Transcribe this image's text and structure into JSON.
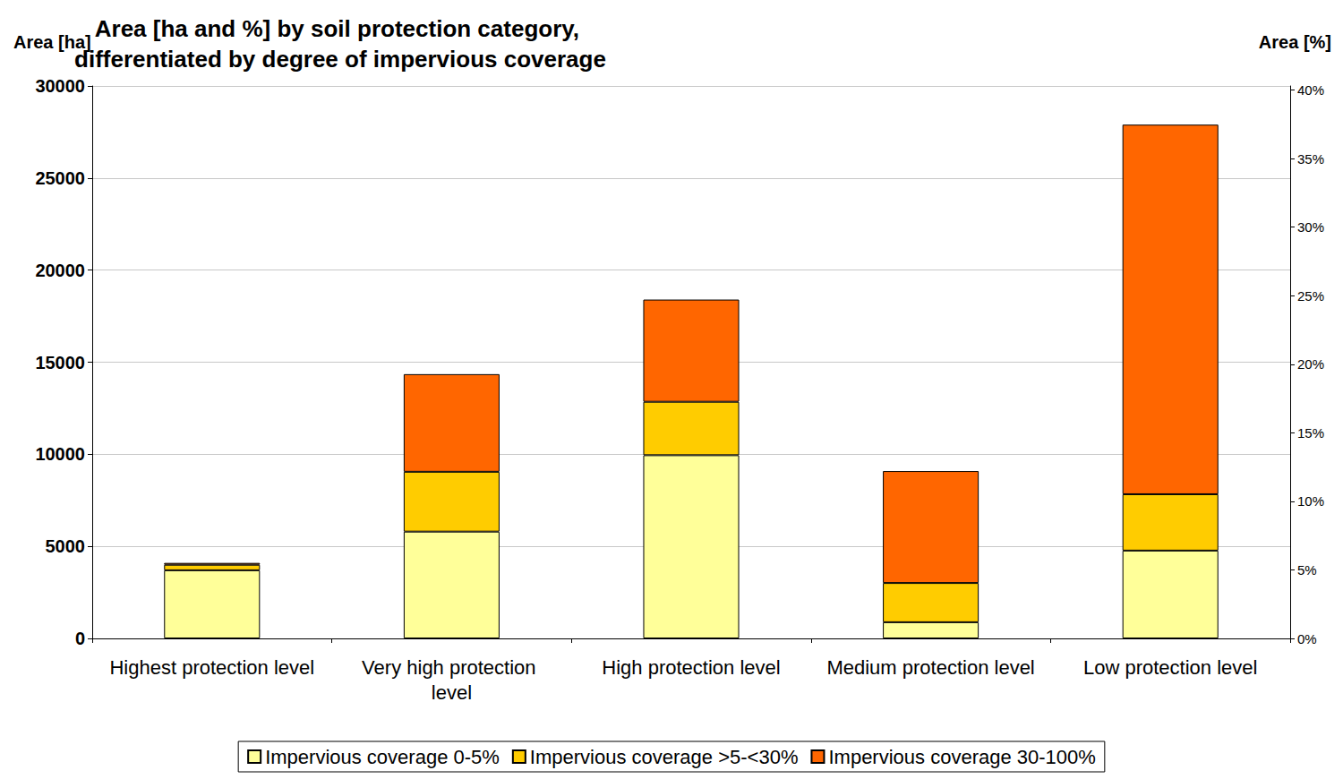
{
  "chart_data": {
    "type": "bar",
    "title": "Area [ha and %] by soil protection category, differentiated by degree of impervious coverage",
    "y_label": "Area [ha]",
    "y2_label": "Area [%]",
    "categories": [
      "Highest protection level",
      "Very high protection level",
      "High protection level",
      "Medium protection level",
      "Low protection level"
    ],
    "series": [
      {
        "name": "Impervious coverage 0-5%",
        "color": "#ffff99",
        "values": [
          3700,
          5800,
          9950,
          880,
          4770
        ]
      },
      {
        "name": "Impervious coverage >5-<30%",
        "color": "#ffcc00",
        "values": [
          300,
          3250,
          2900,
          2130,
          3060
        ]
      },
      {
        "name": "Impervious coverage 30-100%",
        "color": "#ff6600",
        "values": [
          100,
          5300,
          5550,
          6080,
          20070
        ]
      }
    ],
    "stacked": true,
    "ylim": [
      0,
      30000
    ],
    "yticks": [
      0,
      5000,
      10000,
      15000,
      20000,
      25000,
      30000
    ],
    "y2lim": [
      0,
      40.3
    ],
    "y2ticks": [
      {
        "value": 0,
        "label": "0%"
      },
      {
        "value": 5,
        "label": "5%"
      },
      {
        "value": 10,
        "label": "10%"
      },
      {
        "value": 15,
        "label": "15%"
      },
      {
        "value": 20,
        "label": "20%"
      },
      {
        "value": 25,
        "label": "25%"
      },
      {
        "value": 30,
        "label": "30%"
      },
      {
        "value": 35,
        "label": "35%"
      },
      {
        "value": 40,
        "label": "40%"
      }
    ],
    "grid": true,
    "legend": "bottom"
  }
}
